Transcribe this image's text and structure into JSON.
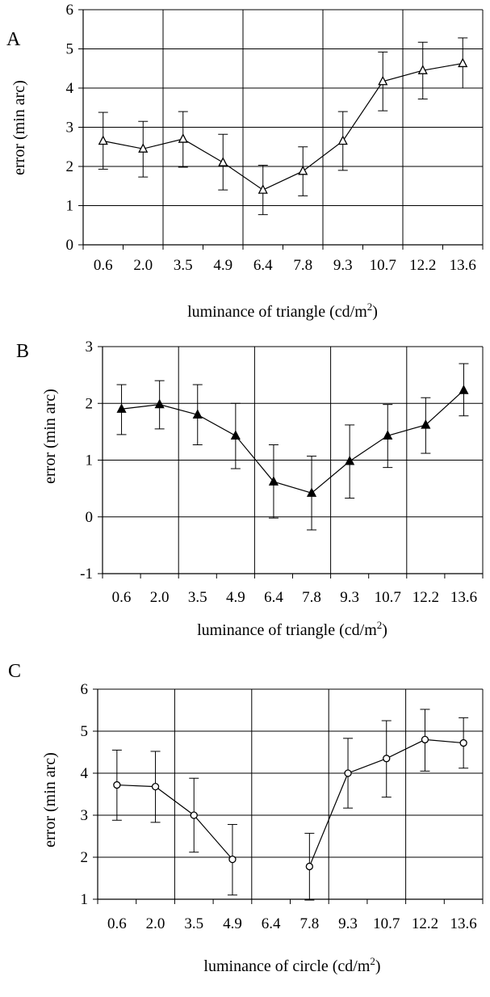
{
  "chart_data": [
    {
      "type": "line",
      "panel": "A",
      "xlabel": "luminance of triangle (cd/m",
      "xlabel_sup": "2",
      "xlabel_close": ")",
      "ylabel": "error (min arc)",
      "categories": [
        "0.6",
        "2.0",
        "3.5",
        "4.9",
        "6.4",
        "7.8",
        "9.3",
        "10.7",
        "12.2",
        "13.6"
      ],
      "ylim": [
        0,
        6
      ],
      "yticks": [
        0,
        1,
        2,
        3,
        4,
        5,
        6
      ],
      "grid": true,
      "marker": "open-triangle",
      "series": [
        {
          "values": [
            2.65,
            2.45,
            2.7,
            2.1,
            1.4,
            1.88,
            2.65,
            4.17,
            4.45,
            4.63
          ],
          "err_low": [
            1.93,
            1.73,
            1.98,
            1.4,
            0.77,
            1.25,
            1.9,
            3.42,
            3.72,
            4.0
          ],
          "err_high": [
            3.38,
            3.15,
            3.4,
            2.82,
            2.03,
            2.5,
            3.4,
            4.92,
            5.17,
            5.28
          ]
        }
      ]
    },
    {
      "type": "line",
      "panel": "B",
      "xlabel": "luminance of triangle (cd/m",
      "xlabel_sup": "2",
      "xlabel_close": ")",
      "ylabel": "error (min arc)",
      "categories": [
        "0.6",
        "2.0",
        "3.5",
        "4.9",
        "6.4",
        "7.8",
        "9.3",
        "10.7",
        "12.2",
        "13.6"
      ],
      "ylim": [
        -1,
        3
      ],
      "yticks": [
        -1,
        0,
        1,
        2,
        3
      ],
      "grid": true,
      "marker": "filled-triangle",
      "series": [
        {
          "values": [
            1.9,
            1.98,
            1.8,
            1.43,
            0.62,
            0.42,
            0.98,
            1.43,
            1.62,
            2.23
          ],
          "err_low": [
            1.45,
            1.55,
            1.27,
            0.85,
            -0.02,
            -0.23,
            0.33,
            0.87,
            1.12,
            1.78
          ],
          "err_high": [
            2.33,
            2.4,
            2.33,
            2.0,
            1.27,
            1.07,
            1.62,
            1.98,
            2.1,
            2.7
          ]
        }
      ]
    },
    {
      "type": "line",
      "panel": "C",
      "xlabel": "luminance of circle (cd/m",
      "xlabel_sup": "2",
      "xlabel_close": ")",
      "ylabel": "error (min arc)",
      "categories": [
        "0.6",
        "2.0",
        "3.5",
        "4.9",
        "6.4",
        "7.8",
        "9.3",
        "10.7",
        "12.2",
        "13.6"
      ],
      "ylim": [
        1,
        6
      ],
      "yticks": [
        1,
        2,
        3,
        4,
        5,
        6
      ],
      "grid": true,
      "marker": "open-circle",
      "series": [
        {
          "values": [
            3.72,
            3.68,
            3.0,
            1.95,
            null,
            1.78,
            4.0,
            4.35,
            4.8,
            4.72
          ],
          "err_low": [
            2.88,
            2.83,
            2.12,
            1.1,
            null,
            0.98,
            3.17,
            3.43,
            4.05,
            4.12
          ],
          "err_high": [
            4.55,
            4.52,
            3.88,
            2.78,
            null,
            2.57,
            4.83,
            5.25,
            5.52,
            5.32
          ]
        }
      ]
    }
  ]
}
